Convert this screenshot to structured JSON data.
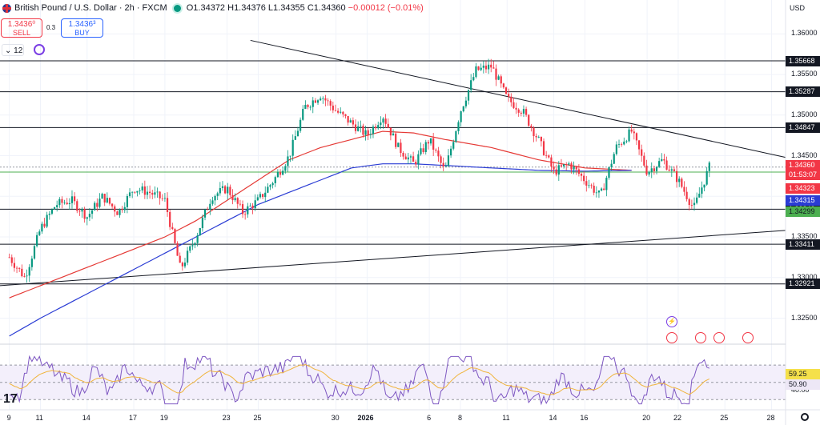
{
  "header": {
    "symbol": "British Pound / U.S. Dollar · 2h · FXCM",
    "open": "O1.34372",
    "high": "H1.34376",
    "low": "L1.34355",
    "close": "C1.34360",
    "change": "−0.00012 (−0.01%)"
  },
  "trade": {
    "sell_price": "1.3436⁰",
    "sell_label": "SELL",
    "spread": "0.3",
    "buy_price": "1.3436³",
    "buy_label": "BUY"
  },
  "toolbar": {
    "period_count": "12"
  },
  "axis": {
    "currency": "USD",
    "price_ticks": [
      "1.36000",
      "1.35500",
      "1.35000",
      "1.34500",
      "1.33500",
      "1.33000",
      "1.32500"
    ],
    "rsi_ticks": [
      "40.00"
    ]
  },
  "colors": {
    "up": "#089981",
    "down": "#f23645",
    "ema_red": "#e53935",
    "ema_blue": "#2a3cd4",
    "rsi": "#7e57c2",
    "rsi_ma": "#f0b43c",
    "support_green": "#4caf50"
  },
  "chart_data": {
    "type": "candlestick",
    "instrument": "GBP/USD",
    "timeframe": "2h",
    "price_range": [
      1.3218,
      1.3622
    ],
    "levels": [
      1.35668,
      1.35287,
      1.34847,
      1.33842,
      1.33411,
      1.32921
    ],
    "level_labels": [
      "1.35668",
      "1.35287",
      "1.34847",
      "1.33842",
      "1.33411",
      "1.32921"
    ],
    "support_green": 1.34299,
    "last_price": {
      "value": "1.34360",
      "countdown": "01:53:07"
    },
    "ema_labels": {
      "red": "1.34323",
      "blue": "1.34315",
      "green": "1.34299"
    },
    "price_path_x": [
      9,
      10,
      11,
      12,
      13,
      14,
      15,
      16,
      17,
      18,
      19,
      20,
      21,
      22,
      23,
      24,
      25,
      26,
      27,
      28,
      29,
      30,
      31,
      32,
      33,
      34,
      35,
      36,
      37,
      38,
      39,
      40,
      41,
      42,
      43,
      44,
      45,
      46,
      47,
      48,
      49,
      50,
      51,
      52,
      53,
      54
    ],
    "price_path": [
      1.3325,
      1.33,
      1.336,
      1.339,
      1.3395,
      1.3375,
      1.34,
      1.338,
      1.341,
      1.3405,
      1.3395,
      1.331,
      1.335,
      1.34,
      1.341,
      1.338,
      1.3395,
      1.342,
      1.345,
      1.351,
      1.3525,
      1.3505,
      1.349,
      1.3475,
      1.35,
      1.346,
      1.344,
      1.347,
      1.343,
      1.3505,
      1.3555,
      1.356,
      1.352,
      1.3505,
      1.347,
      1.343,
      1.344,
      1.342,
      1.34,
      1.346,
      1.348,
      1.343,
      1.3445,
      1.342,
      1.3385,
      1.3436
    ],
    "x_ticks": [
      "9",
      "11",
      "14",
      "17",
      "19",
      "23",
      "25",
      "30",
      "2026",
      "6",
      "8",
      "11",
      "14",
      "16",
      "20",
      "22",
      "25",
      "28"
    ],
    "x_tick_pos": [
      9,
      11,
      14,
      17,
      19,
      23,
      25,
      30,
      32,
      36,
      38,
      41,
      44,
      46,
      50,
      52,
      55,
      58
    ],
    "x_range": [
      8.4,
      58.9
    ],
    "ema_red": [
      1.3275,
      1.329,
      1.3305,
      1.332,
      1.3335,
      1.335,
      1.337,
      1.3395,
      1.342,
      1.3445,
      1.346,
      1.347,
      1.348,
      1.3478,
      1.347,
      1.346,
      1.3445,
      1.3435,
      1.3432
    ],
    "ema_blue": [
      1.3228,
      1.325,
      1.327,
      1.329,
      1.331,
      1.333,
      1.335,
      1.337,
      1.339,
      1.3405,
      1.342,
      1.3435,
      1.344,
      1.344,
      1.3438,
      1.3435,
      1.3432,
      1.3431,
      1.3432
    ],
    "ema_x": [
      9,
      11,
      13,
      15,
      17,
      19,
      21,
      23,
      25,
      27,
      29,
      31,
      33,
      35,
      37,
      40,
      43,
      46,
      49
    ],
    "trendline_down": {
      "x": [
        24.5,
        58.9
      ],
      "y": [
        1.3592,
        1.3448
      ]
    },
    "trendline_up": {
      "x": [
        8.4,
        58.9
      ],
      "y": [
        1.329,
        1.3358
      ]
    },
    "rsi": {
      "current": "59.25",
      "ma": "50.90",
      "upper": 70,
      "middle": 50,
      "lower": 30
    }
  }
}
